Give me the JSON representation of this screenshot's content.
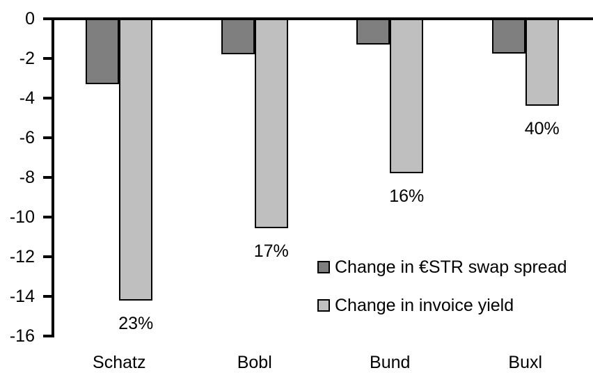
{
  "chart_data": {
    "type": "bar",
    "categories": [
      "Schatz",
      "Bobl",
      "Bund",
      "Buxl"
    ],
    "series": [
      {
        "name": "Change in €STR swap spread",
        "color": "#7f7f7f",
        "values": [
          -3.3,
          -1.8,
          -1.3,
          -1.75
        ]
      },
      {
        "name": "Change in invoice yield",
        "color": "#bfbfbf",
        "values": [
          -14.2,
          -10.55,
          -7.8,
          -4.4
        ],
        "data_labels": [
          "23%",
          "17%",
          "16%",
          "40%"
        ]
      }
    ],
    "ylim": [
      -16,
      0
    ],
    "y_ticks": [
      0,
      -2,
      -4,
      -6,
      -8,
      -10,
      -12,
      -14,
      -16
    ],
    "y_tick_labels": [
      "0",
      "-2",
      "-4",
      "-6",
      "-8",
      "-10",
      "-12",
      "-14",
      "-16"
    ],
    "grid": false,
    "legend_position": "inside-right-middle",
    "bar_border_color": "#000000",
    "axis_color": "#000000",
    "background_color": "#ffffff"
  }
}
